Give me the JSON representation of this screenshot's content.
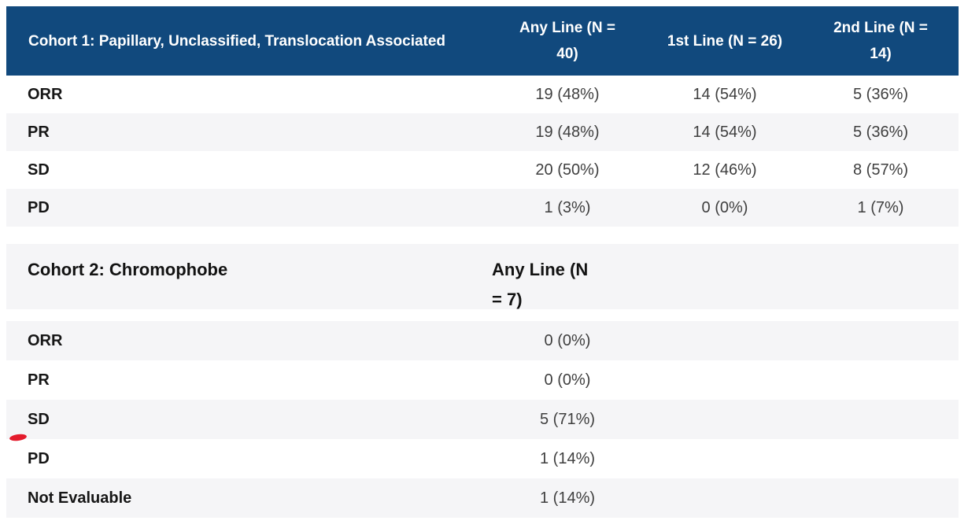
{
  "colors": {
    "header_blue": "#11497d",
    "stripe_gray": "#f5f5f7",
    "header_text": "#ffffff",
    "label_text": "#161616",
    "value_text": "#3f3f3f",
    "annotation_red": "#e41b2c"
  },
  "cohort1": {
    "title": "Cohort 1: Papillary, Unclassified, Translocation Associated",
    "columns": [
      "Any Line (N = 40)",
      "1st Line (N = 26)",
      "2nd Line (N = 14)"
    ],
    "rows": [
      {
        "label": "ORR",
        "values": [
          "19 (48%)",
          "14 (54%)",
          "5 (36%)"
        ]
      },
      {
        "label": "PR",
        "values": [
          "19 (48%)",
          "14 (54%)",
          "5 (36%)"
        ]
      },
      {
        "label": "SD",
        "values": [
          "20 (50%)",
          "12 (46%)",
          "8 (57%)"
        ]
      },
      {
        "label": "PD",
        "values": [
          "1 (3%)",
          "0 (0%)",
          "1 (7%)"
        ]
      }
    ]
  },
  "cohort2": {
    "title": "Cohort 2: Chromophobe",
    "columns": [
      "Any Line (N = 7)"
    ],
    "rows": [
      {
        "label": "ORR",
        "values": [
          "0 (0%)"
        ]
      },
      {
        "label": "PR",
        "values": [
          "0 (0%)"
        ]
      },
      {
        "label": "SD",
        "values": [
          "5 (71%)"
        ]
      },
      {
        "label": "PD",
        "values": [
          "1 (14%)"
        ]
      },
      {
        "label": "Not Evaluable",
        "values": [
          "1 (14%)"
        ]
      }
    ]
  },
  "annotation": {
    "shape": "red-dash-mark"
  }
}
